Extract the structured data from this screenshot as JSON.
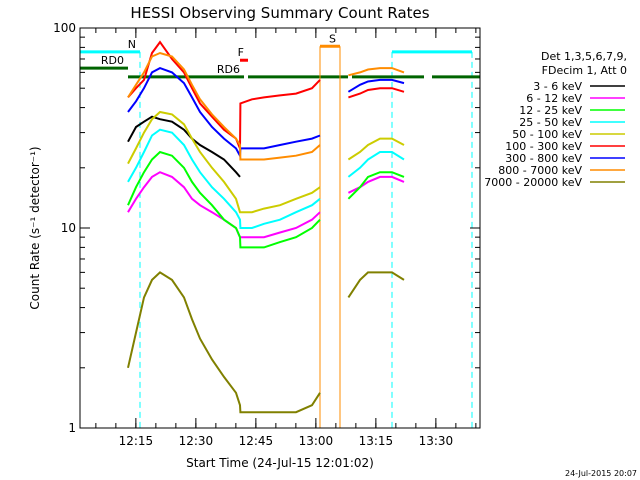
{
  "chart_data": {
    "type": "line",
    "title": "HESSI Observing Summary Count Rates",
    "xlabel": "Start Time (24-Jul-15 12:01:02)",
    "ylabel": "Count Rate (s⁻¹ detector⁻¹)",
    "ylim": [
      1,
      100
    ],
    "yscale": "log",
    "xlim_minutes": [
      0,
      100
    ],
    "x_ticks": [
      "12:15",
      "12:30",
      "12:45",
      "13:00",
      "13:15",
      "13:30"
    ],
    "y_ticks": [
      "1",
      "10",
      "100"
    ],
    "x_minutes": [
      0,
      5,
      8,
      12,
      14,
      16,
      18,
      20,
      23,
      26,
      28,
      30,
      33,
      36,
      39,
      40,
      40.1,
      43,
      46,
      50,
      54,
      58,
      60,
      60.1,
      62,
      65,
      67,
      67.1,
      70,
      72,
      75,
      78,
      81,
      84,
      87,
      90,
      100
    ],
    "gaps": [
      [
        59.5,
        67.5
      ],
      [
        81.5,
        100
      ]
    ],
    "legend_header": [
      "Det 1,3,5,6,7,9,",
      "FDecim 1, Att 0"
    ],
    "series": [
      {
        "name": "3 - 6 keV",
        "color": "#000000",
        "values": [
          null,
          null,
          null,
          27,
          32,
          34,
          36,
          35,
          34,
          31,
          28,
          26,
          24,
          22,
          19,
          18,
          null,
          null,
          null,
          null,
          null,
          null,
          null,
          null,
          null,
          null,
          null,
          null,
          null,
          null,
          null,
          null,
          null,
          null,
          null,
          null,
          null
        ]
      },
      {
        "name": "6 - 12 keV",
        "color": "#ff00ff",
        "values": [
          null,
          null,
          null,
          12,
          14,
          16,
          18,
          19,
          18,
          16,
          14,
          13,
          12,
          11,
          10,
          9,
          9,
          9,
          9,
          9.5,
          10,
          11,
          12,
          null,
          null,
          null,
          null,
          15,
          16,
          17,
          18,
          18,
          17,
          null,
          null,
          null,
          null
        ]
      },
      {
        "name": "12 - 25 keV",
        "color": "#00ff00",
        "values": [
          null,
          null,
          null,
          13,
          16,
          19,
          22,
          24,
          23,
          20,
          17,
          15,
          13,
          11,
          10,
          9,
          8,
          8,
          8,
          8.5,
          9,
          10,
          11,
          null,
          null,
          null,
          null,
          14,
          16,
          18,
          19,
          19,
          18,
          null,
          null,
          null,
          null
        ]
      },
      {
        "name": "25 - 50 keV",
        "color": "#00ffff",
        "values": [
          null,
          null,
          null,
          17,
          20,
          24,
          29,
          31,
          30,
          26,
          22,
          19,
          16,
          14,
          12,
          11,
          10,
          10,
          10.5,
          11,
          12,
          13,
          14,
          null,
          null,
          null,
          null,
          18,
          20,
          22,
          24,
          24,
          22,
          null,
          null,
          null,
          null
        ]
      },
      {
        "name": "50 - 100 keV",
        "color": "#cccc00",
        "values": [
          null,
          null,
          null,
          21,
          25,
          30,
          35,
          38,
          37,
          33,
          28,
          24,
          20,
          17,
          14,
          12,
          12,
          12,
          12.5,
          13,
          14,
          15,
          16,
          null,
          null,
          null,
          null,
          22,
          24,
          26,
          28,
          28,
          26,
          null,
          null,
          null,
          null
        ]
      },
      {
        "name": "100 - 300 keV",
        "color": "#ff0000",
        "values": [
          null,
          null,
          null,
          45,
          50,
          55,
          75,
          85,
          70,
          60,
          50,
          42,
          36,
          31,
          28,
          25,
          42,
          44,
          45,
          46,
          47,
          50,
          55,
          null,
          null,
          null,
          null,
          45,
          47,
          49,
          50,
          50,
          48,
          null,
          null,
          null,
          null
        ]
      },
      {
        "name": "300 - 800 keV",
        "color": "#0000ff",
        "values": [
          null,
          null,
          null,
          38,
          43,
          50,
          60,
          63,
          60,
          53,
          45,
          38,
          32,
          28,
          25,
          23,
          25,
          25,
          25,
          26,
          27,
          28,
          29,
          null,
          null,
          null,
          null,
          48,
          52,
          54,
          55,
          55,
          53,
          null,
          null,
          null,
          null
        ]
      },
      {
        "name": "800 - 7000 keV",
        "color": "#ff8c00",
        "values": [
          null,
          null,
          null,
          45,
          52,
          60,
          72,
          75,
          72,
          62,
          52,
          44,
          37,
          32,
          28,
          26,
          22,
          22,
          22,
          22.5,
          23,
          24,
          26,
          null,
          null,
          null,
          null,
          58,
          60,
          62,
          63,
          63,
          60,
          null,
          null,
          null,
          null
        ]
      },
      {
        "name": "7000 - 20000 keV",
        "color": "#808000",
        "values": [
          null,
          null,
          null,
          2,
          3,
          4.5,
          5.5,
          6,
          5.5,
          4.5,
          3.5,
          2.8,
          2.2,
          1.8,
          1.5,
          1.3,
          1.2,
          1.2,
          1.2,
          1.2,
          1.2,
          1.3,
          1.5,
          null,
          null,
          null,
          null,
          4.5,
          5.5,
          6,
          6,
          6,
          5.5,
          null,
          null,
          null,
          null
        ]
      }
    ],
    "annotations": [
      {
        "label": "N",
        "color": "#00ffff",
        "kind": "night",
        "spans_minutes": [
          [
            0,
            15
          ],
          [
            78,
            98
          ]
        ],
        "boundaries_minutes": [
          0,
          15,
          78,
          98
        ],
        "y": 76
      },
      {
        "label": "RD0",
        "color": "#006400",
        "kind": "saa",
        "spans_minutes": [
          [
            0,
            12
          ]
        ],
        "y": 63
      },
      {
        "label": "RD6",
        "color": "#006400",
        "kind": "saa",
        "spans_minutes": [
          [
            12,
            41
          ],
          [
            42,
            67
          ],
          [
            68,
            86
          ],
          [
            88,
            100
          ]
        ],
        "y": 57
      },
      {
        "label": "F",
        "color": "#ff0000",
        "kind": "flare",
        "spans_minutes": [
          [
            40,
            42
          ]
        ],
        "y": 69
      },
      {
        "label": "S",
        "color": "#ff8c00",
        "kind": "saa",
        "spans_minutes": [
          [
            60,
            65
          ]
        ],
        "boundaries_minutes": [
          60,
          65
        ],
        "y": 81
      }
    ],
    "grid": false
  },
  "footer": {
    "timestamp": "24-Jul-2015 20:07"
  }
}
